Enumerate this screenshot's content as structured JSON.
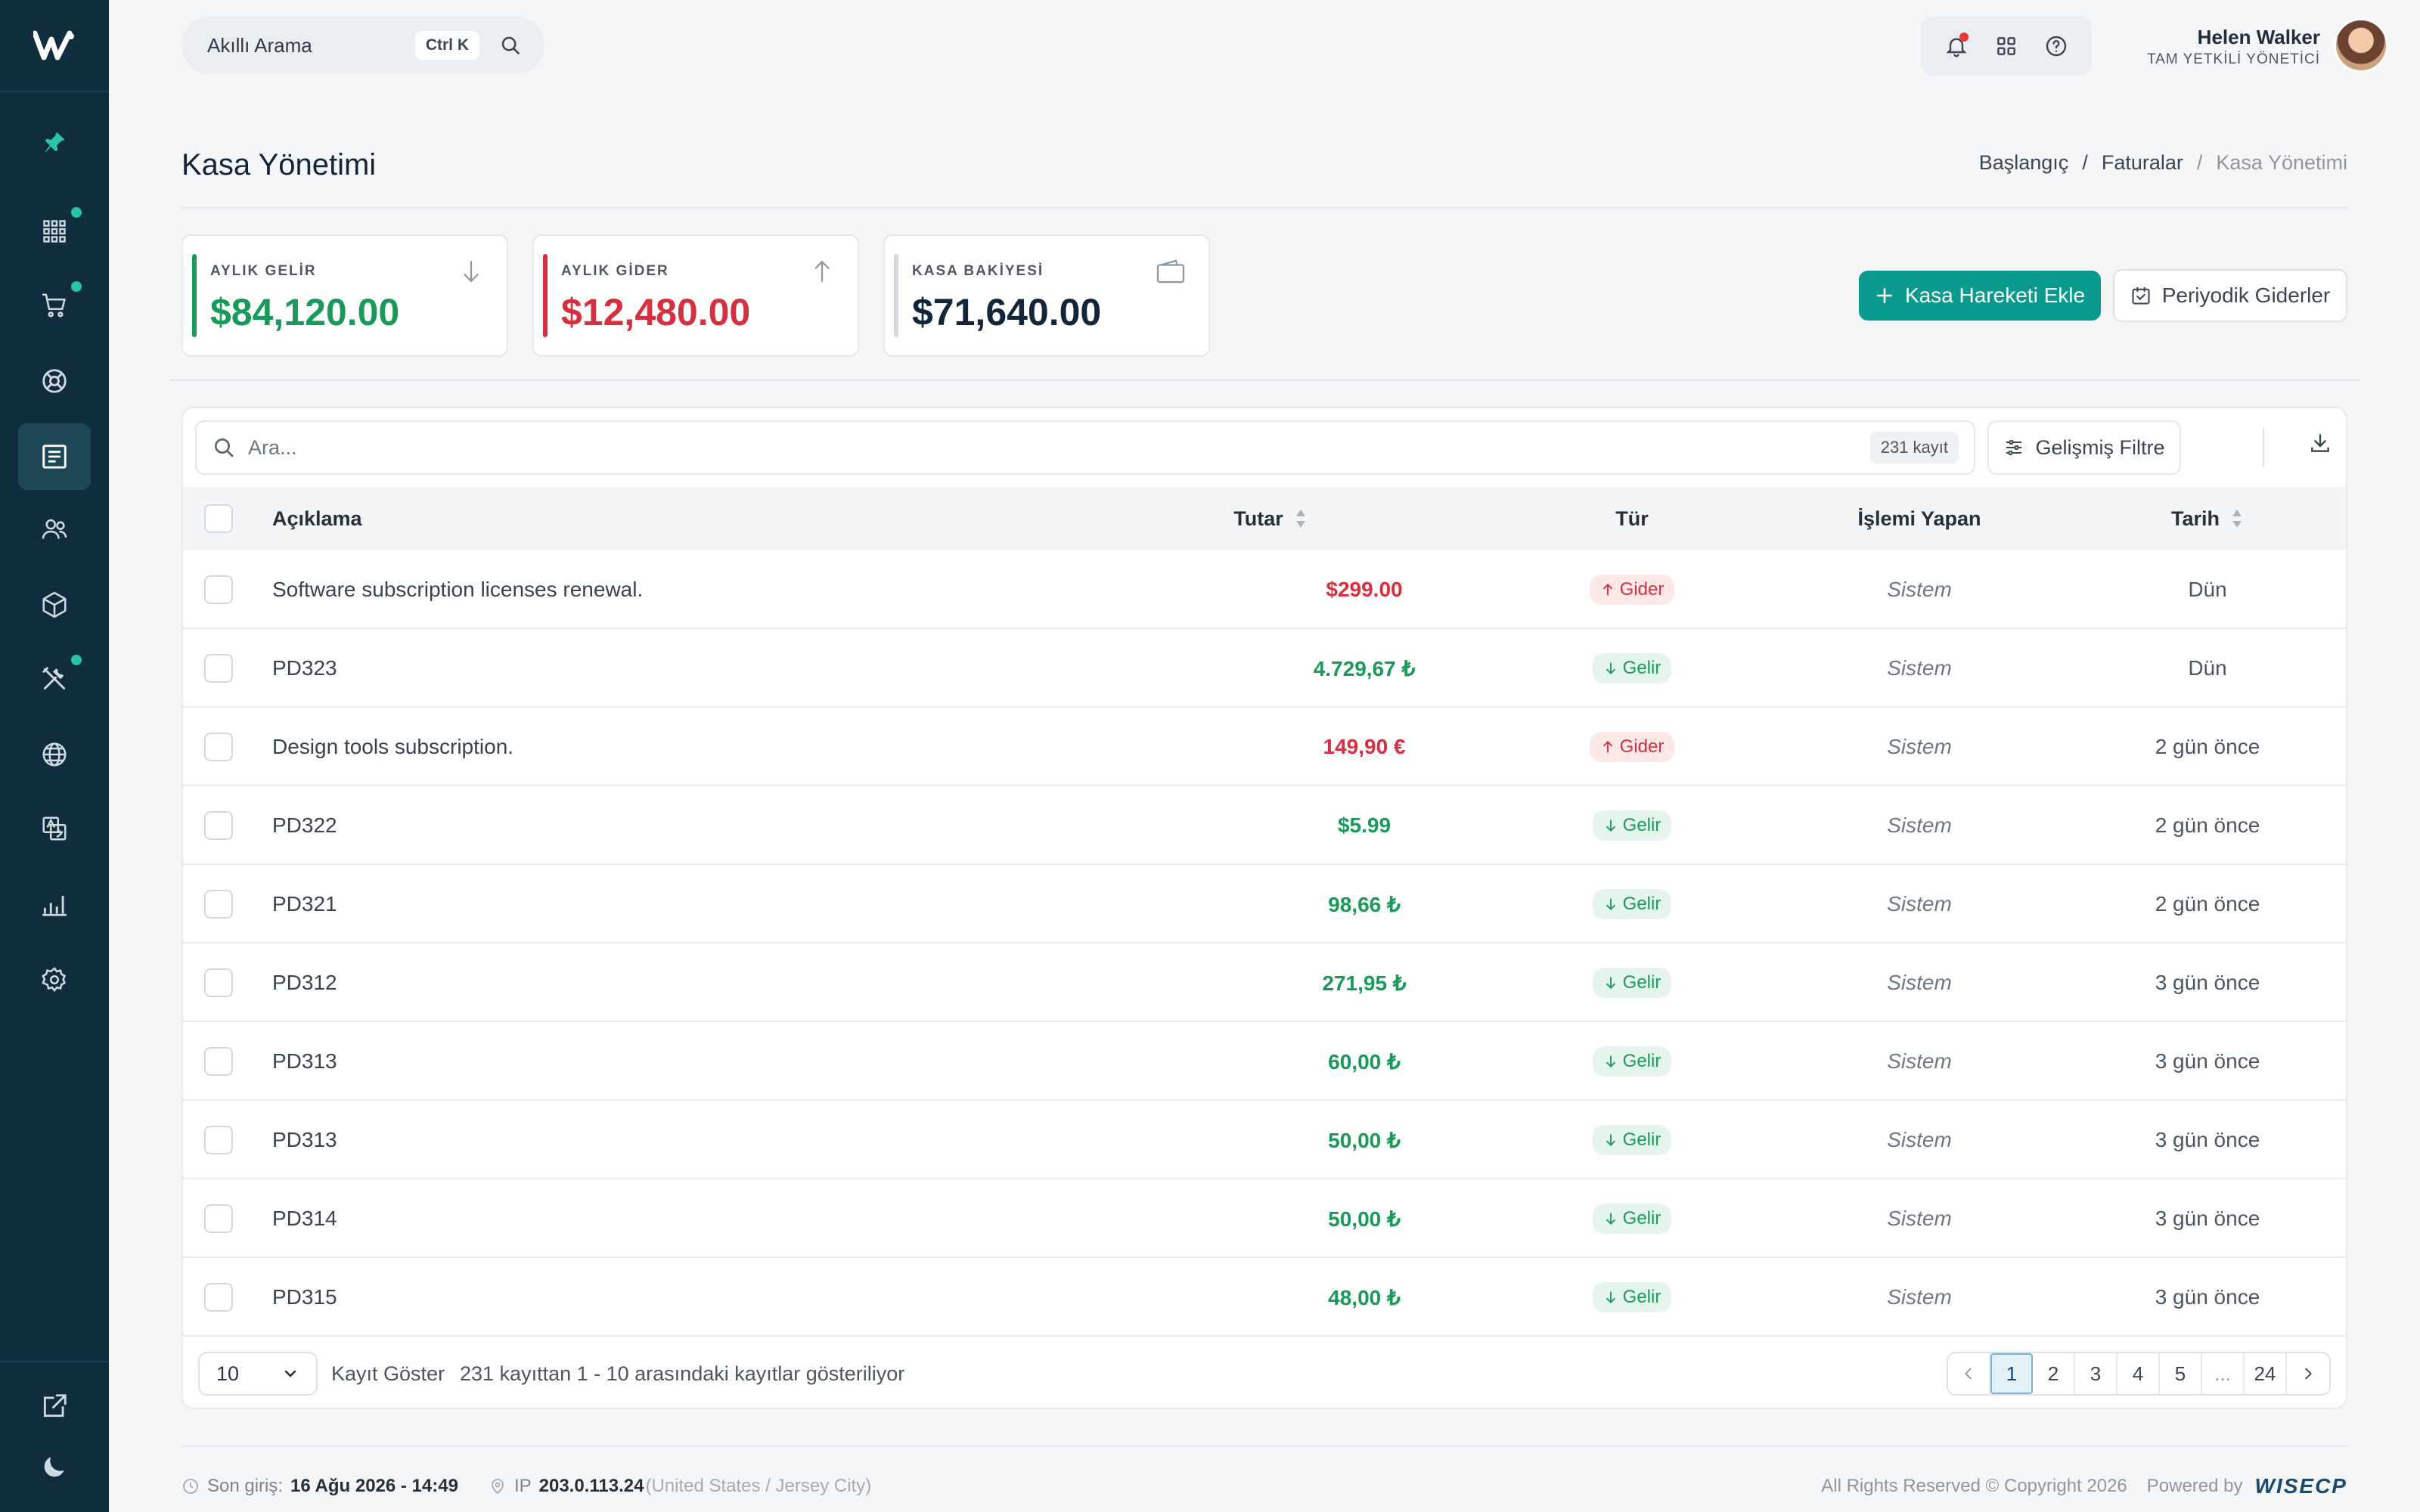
{
  "topbar": {
    "search_placeholder": "Akıllı Arama",
    "shortcut": "Ctrl K",
    "user_name": "Helen Walker",
    "user_role": "TAM YETKİLİ YÖNETİCİ"
  },
  "sidebar": {
    "icons": [
      "pin-icon",
      "apps-icon",
      "cart-icon",
      "support-icon",
      "invoice-icon",
      "users-icon",
      "box-icon",
      "tools-icon",
      "globe-icon",
      "translate-icon",
      "chart-icon",
      "settings-icon"
    ],
    "active": "invoice-icon",
    "bottom_icons": [
      "external-link-icon",
      "moon-icon"
    ]
  },
  "page": {
    "title": "Kasa Yönetimi",
    "breadcrumb": [
      "Başlangıç",
      "Faturalar",
      "Kasa Yönetimi"
    ]
  },
  "stats": [
    {
      "label": "AYLIK GELİR",
      "value": "$84,120.00",
      "color": "#1a9a5a"
    },
    {
      "label": "AYLIK GİDER",
      "value": "$12,480.00",
      "color": "#d62f3f"
    },
    {
      "label": "KASA BAKİYESİ",
      "value": "$71,640.00",
      "color": "#12263a"
    }
  ],
  "actions": {
    "add_label": "Kasa Hareketi Ekle",
    "periodic_label": "Periyodik Giderler"
  },
  "table": {
    "search_placeholder": "Ara...",
    "record_count": "231 kayıt",
    "filter_label": "Gelişmiş Filtre",
    "columns": {
      "desc": "Açıklama",
      "amount": "Tutar",
      "type": "Tür",
      "by": "İşlemi Yapan",
      "date": "Tarih"
    },
    "rows": [
      {
        "desc": "Software subscription licenses renewal.",
        "amount": "$299.00",
        "type": "Gider",
        "by": "Sistem",
        "date": "Dün"
      },
      {
        "desc": "PD323",
        "amount": "4.729,67 ₺",
        "type": "Gelir",
        "by": "Sistem",
        "date": "Dün"
      },
      {
        "desc": "Design tools subscription.",
        "amount": "149,90 €",
        "type": "Gider",
        "by": "Sistem",
        "date": "2 gün önce"
      },
      {
        "desc": "PD322",
        "amount": "$5.99",
        "type": "Gelir",
        "by": "Sistem",
        "date": "2 gün önce"
      },
      {
        "desc": "PD321",
        "amount": "98,66 ₺",
        "type": "Gelir",
        "by": "Sistem",
        "date": "2 gün önce"
      },
      {
        "desc": "PD312",
        "amount": "271,95 ₺",
        "type": "Gelir",
        "by": "Sistem",
        "date": "3 gün önce"
      },
      {
        "desc": "PD313",
        "amount": "60,00 ₺",
        "type": "Gelir",
        "by": "Sistem",
        "date": "3 gün önce"
      },
      {
        "desc": "PD313",
        "amount": "50,00 ₺",
        "type": "Gelir",
        "by": "Sistem",
        "date": "3 gün önce"
      },
      {
        "desc": "PD314",
        "amount": "50,00 ₺",
        "type": "Gelir",
        "by": "Sistem",
        "date": "3 gün önce"
      },
      {
        "desc": "PD315",
        "amount": "48,00 ₺",
        "type": "Gelir",
        "by": "Sistem",
        "date": "3 gün önce"
      }
    ],
    "page_size": "10",
    "page_size_label": "Kayıt Göster",
    "info": "231 kayıttan 1 - 10 arasındaki kayıtlar gösteriliyor",
    "pages": [
      "1",
      "2",
      "3",
      "4",
      "5",
      "...",
      "24"
    ],
    "current_page": "1"
  },
  "footer": {
    "last_login_label": "Son giriş:",
    "last_login_value": "16 Ağu 2026 - 14:49",
    "ip_label": "IP",
    "ip_value": "203.0.113.24",
    "ip_location": "(United States / Jersey City)",
    "copyright": "All Rights Reserved © Copyright 2026",
    "powered_by": "Powered by",
    "brand": "WISECP"
  }
}
